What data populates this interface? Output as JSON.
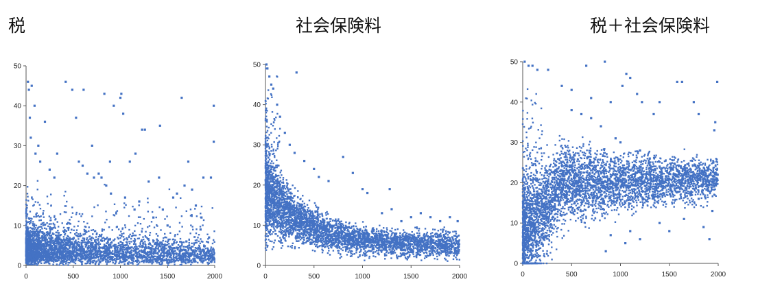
{
  "chart_data": [
    {
      "type": "scatter",
      "title": "税",
      "xlim": [
        0,
        2000
      ],
      "ylim": [
        0,
        50
      ],
      "xticks": [
        "0",
        "500",
        "1000",
        "1500",
        "2000"
      ],
      "yticks": [
        "0",
        "10",
        "20",
        "30",
        "40",
        "50"
      ],
      "grid": false,
      "legend": "none",
      "series": [
        {
          "color": "#4472C4",
          "density": "dense-low-cloud",
          "points": [
            [
              20,
              46
            ],
            [
              30,
              44
            ],
            [
              40,
              37
            ],
            [
              60,
              45
            ],
            [
              90,
              40
            ],
            [
              130,
              30
            ],
            [
              200,
              36
            ],
            [
              330,
              28
            ],
            [
              420,
              46
            ],
            [
              490,
              44
            ],
            [
              530,
              37
            ],
            [
              560,
              26
            ],
            [
              610,
              44
            ],
            [
              700,
              30
            ],
            [
              720,
              22
            ],
            [
              770,
              23
            ],
            [
              830,
              43
            ],
            [
              890,
              26
            ],
            [
              930,
              40
            ],
            [
              1000,
              42
            ],
            [
              1010,
              43
            ],
            [
              1030,
              38
            ],
            [
              1100,
              26
            ],
            [
              1160,
              28
            ],
            [
              1230,
              34
            ],
            [
              1260,
              34
            ],
            [
              1300,
              21
            ],
            [
              1410,
              22
            ],
            [
              1420,
              35
            ],
            [
              1560,
              17
            ],
            [
              1600,
              18
            ],
            [
              1650,
              42
            ],
            [
              1680,
              20
            ],
            [
              1720,
              26
            ],
            [
              1760,
              19
            ],
            [
              1800,
              15
            ],
            [
              1860,
              12
            ],
            [
              1880,
              22
            ],
            [
              1960,
              22
            ],
            [
              1990,
              31
            ],
            [
              1990,
              40
            ],
            [
              1940,
              7
            ],
            [
              1850,
              9
            ],
            [
              1700,
              6
            ],
            [
              1500,
              10
            ],
            [
              1450,
              14
            ],
            [
              1350,
              12
            ],
            [
              1200,
              16
            ],
            [
              1150,
              14
            ],
            [
              1050,
              17
            ],
            [
              900,
              18
            ],
            [
              850,
              20
            ],
            [
              800,
              22
            ],
            [
              650,
              23
            ],
            [
              600,
              25
            ],
            [
              300,
              22
            ],
            [
              250,
              24
            ],
            [
              150,
              26
            ],
            [
              100,
              28
            ],
            [
              50,
              32
            ]
          ]
        }
      ]
    },
    {
      "type": "scatter",
      "title": "社会保険料",
      "xlim": [
        0,
        2000
      ],
      "ylim": [
        0,
        50
      ],
      "xticks": [
        "0",
        "500",
        "1000",
        "1500",
        "2000"
      ],
      "yticks": [
        "0",
        "10",
        "20",
        "30",
        "40",
        "50"
      ],
      "grid": false,
      "legend": "none",
      "series": [
        {
          "color": "#4472C4",
          "density": "decaying-cloud",
          "points": [
            [
              10,
              50
            ],
            [
              20,
              49
            ],
            [
              40,
              47
            ],
            [
              60,
              45
            ],
            [
              80,
              44
            ],
            [
              320,
              48
            ],
            [
              120,
              40
            ],
            [
              150,
              37
            ],
            [
              200,
              33
            ],
            [
              250,
              30
            ],
            [
              300,
              28
            ],
            [
              400,
              26
            ],
            [
              500,
              24
            ],
            [
              550,
              22
            ],
            [
              650,
              21
            ],
            [
              800,
              27
            ],
            [
              900,
              23
            ],
            [
              1000,
              19
            ],
            [
              1050,
              18
            ],
            [
              1200,
              13
            ],
            [
              1280,
              19
            ],
            [
              1300,
              14
            ],
            [
              1400,
              11
            ],
            [
              1500,
              12
            ],
            [
              1600,
              13
            ],
            [
              1700,
              12
            ],
            [
              1800,
              11
            ],
            [
              1900,
              12
            ],
            [
              1980,
              11
            ],
            [
              1990,
              6
            ],
            [
              1950,
              4
            ],
            [
              1850,
              5
            ],
            [
              1700,
              7
            ],
            [
              1600,
              6
            ],
            [
              1500,
              4
            ],
            [
              1400,
              5
            ],
            [
              1300,
              3
            ]
          ]
        }
      ]
    },
    {
      "type": "scatter",
      "title": "税＋社会保険料",
      "xlim": [
        0,
        2000
      ],
      "ylim": [
        0,
        50
      ],
      "xticks": [
        "0",
        "500",
        "1000",
        "1500",
        "2000"
      ],
      "yticks": [
        "0",
        "10",
        "20",
        "30",
        "40",
        "50"
      ],
      "grid": false,
      "legend": "none",
      "series": [
        {
          "color": "#4472C4",
          "density": "spread-wide-cloud",
          "points": [
            [
              20,
              50
            ],
            [
              60,
              49
            ],
            [
              100,
              49
            ],
            [
              150,
              48
            ],
            [
              260,
              48
            ],
            [
              650,
              49
            ],
            [
              840,
              50
            ],
            [
              1060,
              47
            ],
            [
              1100,
              46
            ],
            [
              1020,
              44
            ],
            [
              1170,
              42
            ],
            [
              400,
              44
            ],
            [
              500,
              43
            ],
            [
              700,
              41
            ],
            [
              900,
              40
            ],
            [
              1220,
              40
            ],
            [
              1400,
              40
            ],
            [
              1340,
              37
            ],
            [
              1580,
              45
            ],
            [
              1630,
              45
            ],
            [
              1750,
              40
            ],
            [
              1800,
              37
            ],
            [
              1990,
              45
            ],
            [
              1970,
              35
            ],
            [
              1960,
              33
            ],
            [
              1950,
              25
            ],
            [
              1990,
              22
            ],
            [
              1900,
              18
            ],
            [
              1800,
              16
            ],
            [
              1700,
              20
            ],
            [
              1600,
              22
            ],
            [
              1500,
              21
            ],
            [
              1400,
              24
            ],
            [
              1300,
              26
            ],
            [
              1200,
              28
            ],
            [
              1000,
              30
            ],
            [
              950,
              31
            ],
            [
              800,
              34
            ],
            [
              700,
              36
            ],
            [
              600,
              37
            ],
            [
              500,
              38
            ],
            [
              1940,
              13
            ],
            [
              1910,
              6
            ],
            [
              1850,
              9
            ],
            [
              1650,
              11
            ],
            [
              1500,
              8
            ],
            [
              1400,
              10
            ],
            [
              1200,
              6
            ],
            [
              1100,
              8
            ],
            [
              1050,
              5
            ],
            [
              900,
              7
            ],
            [
              850,
              3
            ]
          ]
        }
      ]
    }
  ]
}
